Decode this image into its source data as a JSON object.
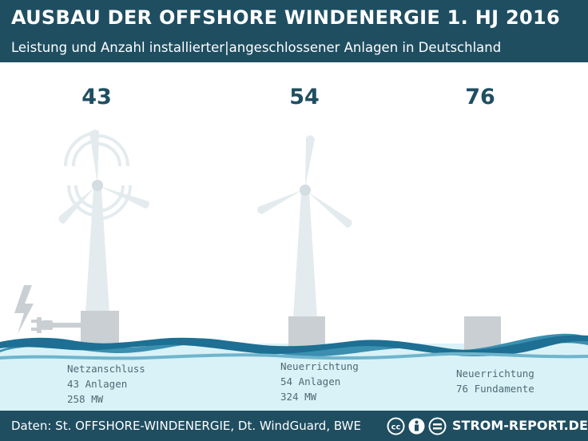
{
  "title": "AUSBAU DER OFFSHORE WINDENERGIE 1. HJ 2016",
  "subtitle": "Leistung und Anzahl installierter|angeschlossener Anlagen in Deutschland",
  "groups": [
    {
      "count": "43",
      "lines": [
        "Netzanschluss",
        "43 Anlagen",
        "258 MW"
      ]
    },
    {
      "count": "54",
      "lines": [
        "Neuerrichtung",
        "54 Anlagen",
        "324 MW"
      ]
    },
    {
      "count": "76",
      "lines": [
        "Neuerrichtung",
        "76 Fundamente"
      ]
    }
  ],
  "footer": {
    "source": "Daten: St. OFFSHORE-WINDENERGIE, Dt. WindGuard, BWE",
    "brand": "STROM-REPORT.DE",
    "license_icons": [
      "cc-icon",
      "attribution-icon",
      "no-derivatives-icon"
    ]
  },
  "colors": {
    "header_bg": "#1f4e61",
    "turbine": "#e4ebee",
    "foundation": "#c9cfd2",
    "water_light": "#d9f2f7",
    "wave_dark": "#1d6f93",
    "wave_mid": "#3b8fb0",
    "text_label": "#4e6a76"
  }
}
